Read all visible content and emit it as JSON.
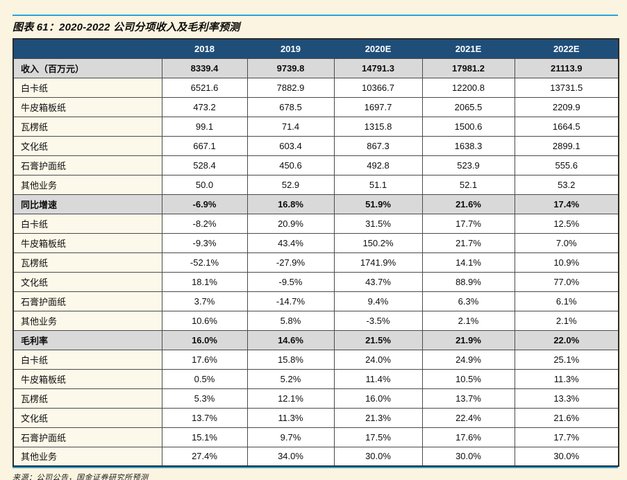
{
  "header": {
    "title": "图表 61：2020-2022 公司分项收入及毛利率预测"
  },
  "footer": {
    "source": "来源：公司公告，国金证券研究所预测"
  },
  "colors": {
    "page_background": "#fbf4e0",
    "header_row_background": "#1f4e79",
    "header_row_text": "#ffffff",
    "section_row_background": "#d9d9d9",
    "label_column_background": "#fdf9ea",
    "accent_rule_blue": "#29a3dc",
    "cell_border": "#4a4a4a"
  },
  "chart_data": {
    "type": "table",
    "title": "图表 61：2020-2022 公司分项收入及毛利率预测",
    "columns": [
      "",
      "2018",
      "2019",
      "2020E",
      "2021E",
      "2022E"
    ],
    "rows": [
      {
        "label": "收入（百万元）",
        "style": "section",
        "values": [
          "8339.4",
          "9739.8",
          "14791.3",
          "17981.2",
          "21113.9"
        ]
      },
      {
        "label": "白卡纸",
        "style": "data",
        "values": [
          "6521.6",
          "7882.9",
          "10366.7",
          "12200.8",
          "13731.5"
        ]
      },
      {
        "label": "牛皮箱板纸",
        "style": "data",
        "values": [
          "473.2",
          "678.5",
          "1697.7",
          "2065.5",
          "2209.9"
        ]
      },
      {
        "label": "瓦楞纸",
        "style": "data",
        "values": [
          "99.1",
          "71.4",
          "1315.8",
          "1500.6",
          "1664.5"
        ]
      },
      {
        "label": "文化纸",
        "style": "data",
        "values": [
          "667.1",
          "603.4",
          "867.3",
          "1638.3",
          "2899.1"
        ]
      },
      {
        "label": "石膏护面纸",
        "style": "data",
        "values": [
          "528.4",
          "450.6",
          "492.8",
          "523.9",
          "555.6"
        ]
      },
      {
        "label": "其他业务",
        "style": "data",
        "values": [
          "50.0",
          "52.9",
          "51.1",
          "52.1",
          "53.2"
        ]
      },
      {
        "label": "同比增速",
        "style": "section",
        "values": [
          "-6.9%",
          "16.8%",
          "51.9%",
          "21.6%",
          "17.4%"
        ]
      },
      {
        "label": "白卡纸",
        "style": "data",
        "values": [
          "-8.2%",
          "20.9%",
          "31.5%",
          "17.7%",
          "12.5%"
        ]
      },
      {
        "label": "牛皮箱板纸",
        "style": "data",
        "values": [
          "-9.3%",
          "43.4%",
          "150.2%",
          "21.7%",
          "7.0%"
        ]
      },
      {
        "label": "瓦楞纸",
        "style": "data",
        "values": [
          "-52.1%",
          "-27.9%",
          "1741.9%",
          "14.1%",
          "10.9%"
        ]
      },
      {
        "label": "文化纸",
        "style": "data",
        "values": [
          "18.1%",
          "-9.5%",
          "43.7%",
          "88.9%",
          "77.0%"
        ]
      },
      {
        "label": "石膏护面纸",
        "style": "data",
        "values": [
          "3.7%",
          "-14.7%",
          "9.4%",
          "6.3%",
          "6.1%"
        ]
      },
      {
        "label": "其他业务",
        "style": "data",
        "values": [
          "10.6%",
          "5.8%",
          "-3.5%",
          "2.1%",
          "2.1%"
        ]
      },
      {
        "label": "毛利率",
        "style": "section",
        "values": [
          "16.0%",
          "14.6%",
          "21.5%",
          "21.9%",
          "22.0%"
        ]
      },
      {
        "label": "白卡纸",
        "style": "data",
        "values": [
          "17.6%",
          "15.8%",
          "24.0%",
          "24.9%",
          "25.1%"
        ]
      },
      {
        "label": "牛皮箱板纸",
        "style": "data",
        "values": [
          "0.5%",
          "5.2%",
          "11.4%",
          "10.5%",
          "11.3%"
        ]
      },
      {
        "label": "瓦楞纸",
        "style": "data",
        "values": [
          "5.3%",
          "12.1%",
          "16.0%",
          "13.7%",
          "13.3%"
        ]
      },
      {
        "label": "文化纸",
        "style": "data",
        "values": [
          "13.7%",
          "11.3%",
          "21.3%",
          "22.4%",
          "21.6%"
        ]
      },
      {
        "label": "石膏护面纸",
        "style": "data",
        "values": [
          "15.1%",
          "9.7%",
          "17.5%",
          "17.6%",
          "17.7%"
        ]
      },
      {
        "label": "其他业务",
        "style": "data",
        "values": [
          "27.4%",
          "34.0%",
          "30.0%",
          "30.0%",
          "30.0%"
        ]
      }
    ]
  }
}
